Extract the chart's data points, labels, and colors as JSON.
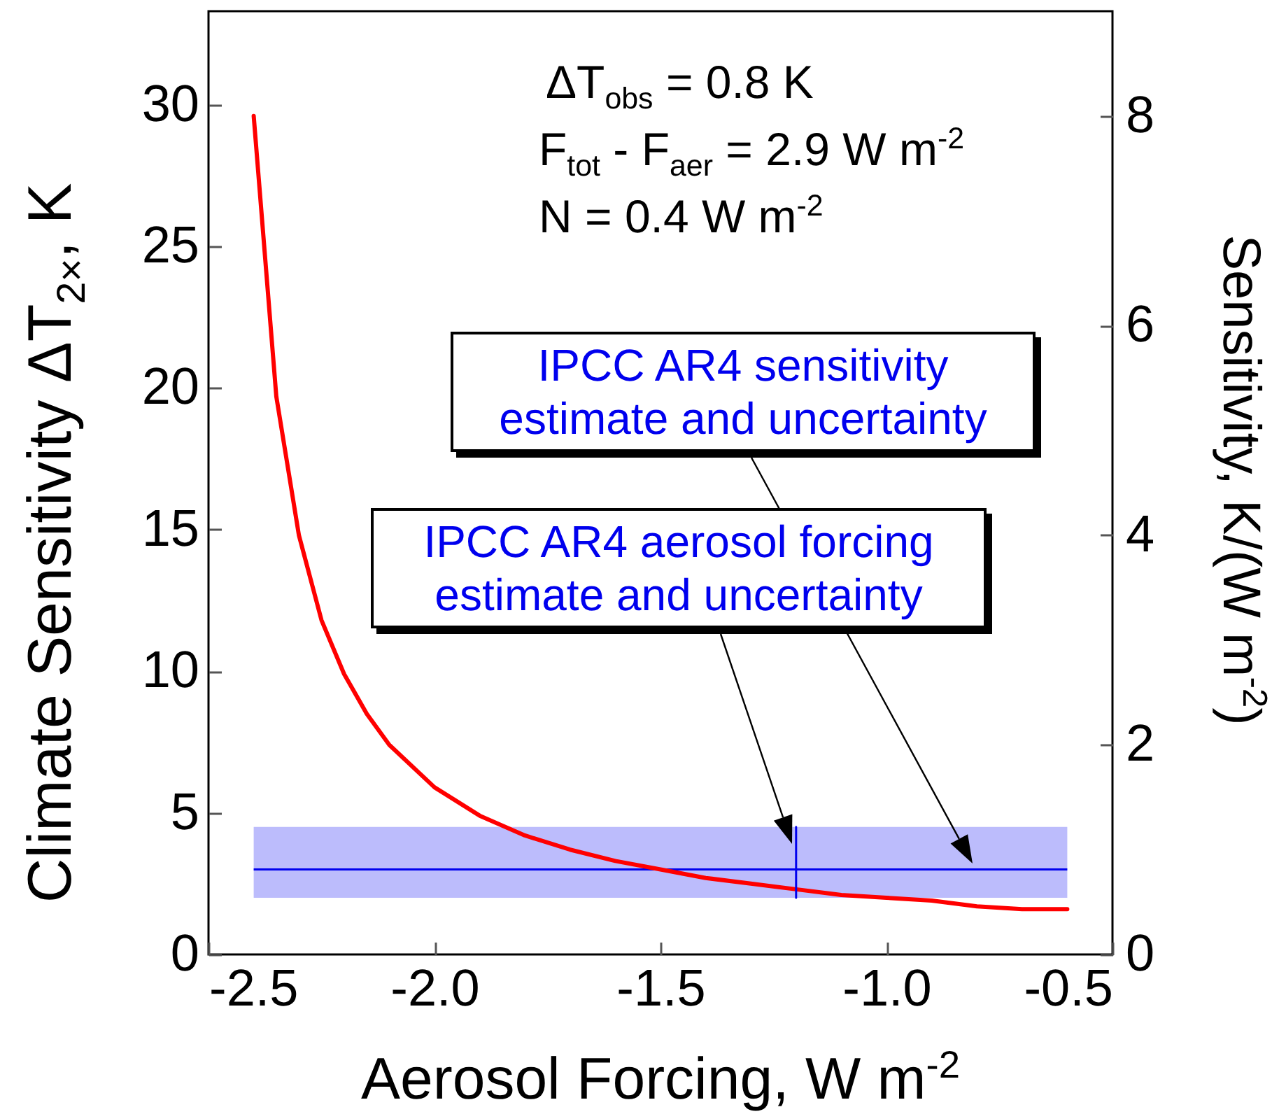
{
  "chart_data": {
    "type": "line",
    "xlabel": "Aerosol Forcing, W m$^{-2}$",
    "ylabel": "Climate Sensitivity ΔT$_{2×}$, K",
    "y2label": "Sensitivity, K/(W m$^{-2}$)",
    "x": [
      -2.4,
      -2.35,
      -2.3,
      -2.25,
      -2.2,
      -2.15,
      -2.1,
      -2.0,
      -1.9,
      -1.8,
      -1.7,
      -1.6,
      -1.5,
      -1.4,
      -1.3,
      -1.2,
      -1.1,
      -1.0,
      -0.9,
      -0.8,
      -0.7,
      -0.6
    ],
    "series": [
      {
        "color": "#ff0000",
        "values": [
          29.6,
          19.7,
          14.8,
          11.8,
          9.9,
          8.5,
          7.4,
          5.9,
          4.9,
          4.2,
          3.7,
          3.3,
          3.0,
          2.7,
          2.5,
          2.3,
          2.1,
          2.0,
          1.9,
          1.7,
          1.6,
          1.6
        ]
      },
      {
        "type": "line",
        "color": "#0000ee",
        "x": [
          -1.2,
          -1.2
        ],
        "values": [
          2,
          4.5
        ]
      }
    ],
    "xlim": [
      -2.5,
      -0.5
    ],
    "xticks": [
      -2.5,
      {
        "value": -2,
        "label": "-2.0"
      },
      -1.5,
      {
        "value": -1,
        "label": "-1.0"
      },
      -0.5
    ],
    "ylim": [
      0,
      33.3
    ],
    "yticks": [
      0,
      5,
      10,
      15,
      20,
      25,
      30
    ],
    "y2lim": [
      0,
      9
    ],
    "y2ticks": [
      0,
      2,
      4,
      6,
      8
    ],
    "bands": [
      {
        "axis": "y",
        "from": 2,
        "to": 4.5,
        "color": "#bcbcfc"
      }
    ],
    "ref_lines": [
      {
        "axis": "y",
        "value": 3,
        "color": "#0000ee"
      }
    ],
    "annotations": [
      "ΔT$_{obs}$ = 0.8 K",
      "F$_{tot}$ - F$_{aer}$ = 2.9  W m$^{-2}$",
      "N = 0.4 W m$^{-2}$",
      "IPCC AR4 sensitivity estimate and uncertainty",
      "IPCC AR4 aerosol forcing estimate and uncertainty"
    ]
  }
}
